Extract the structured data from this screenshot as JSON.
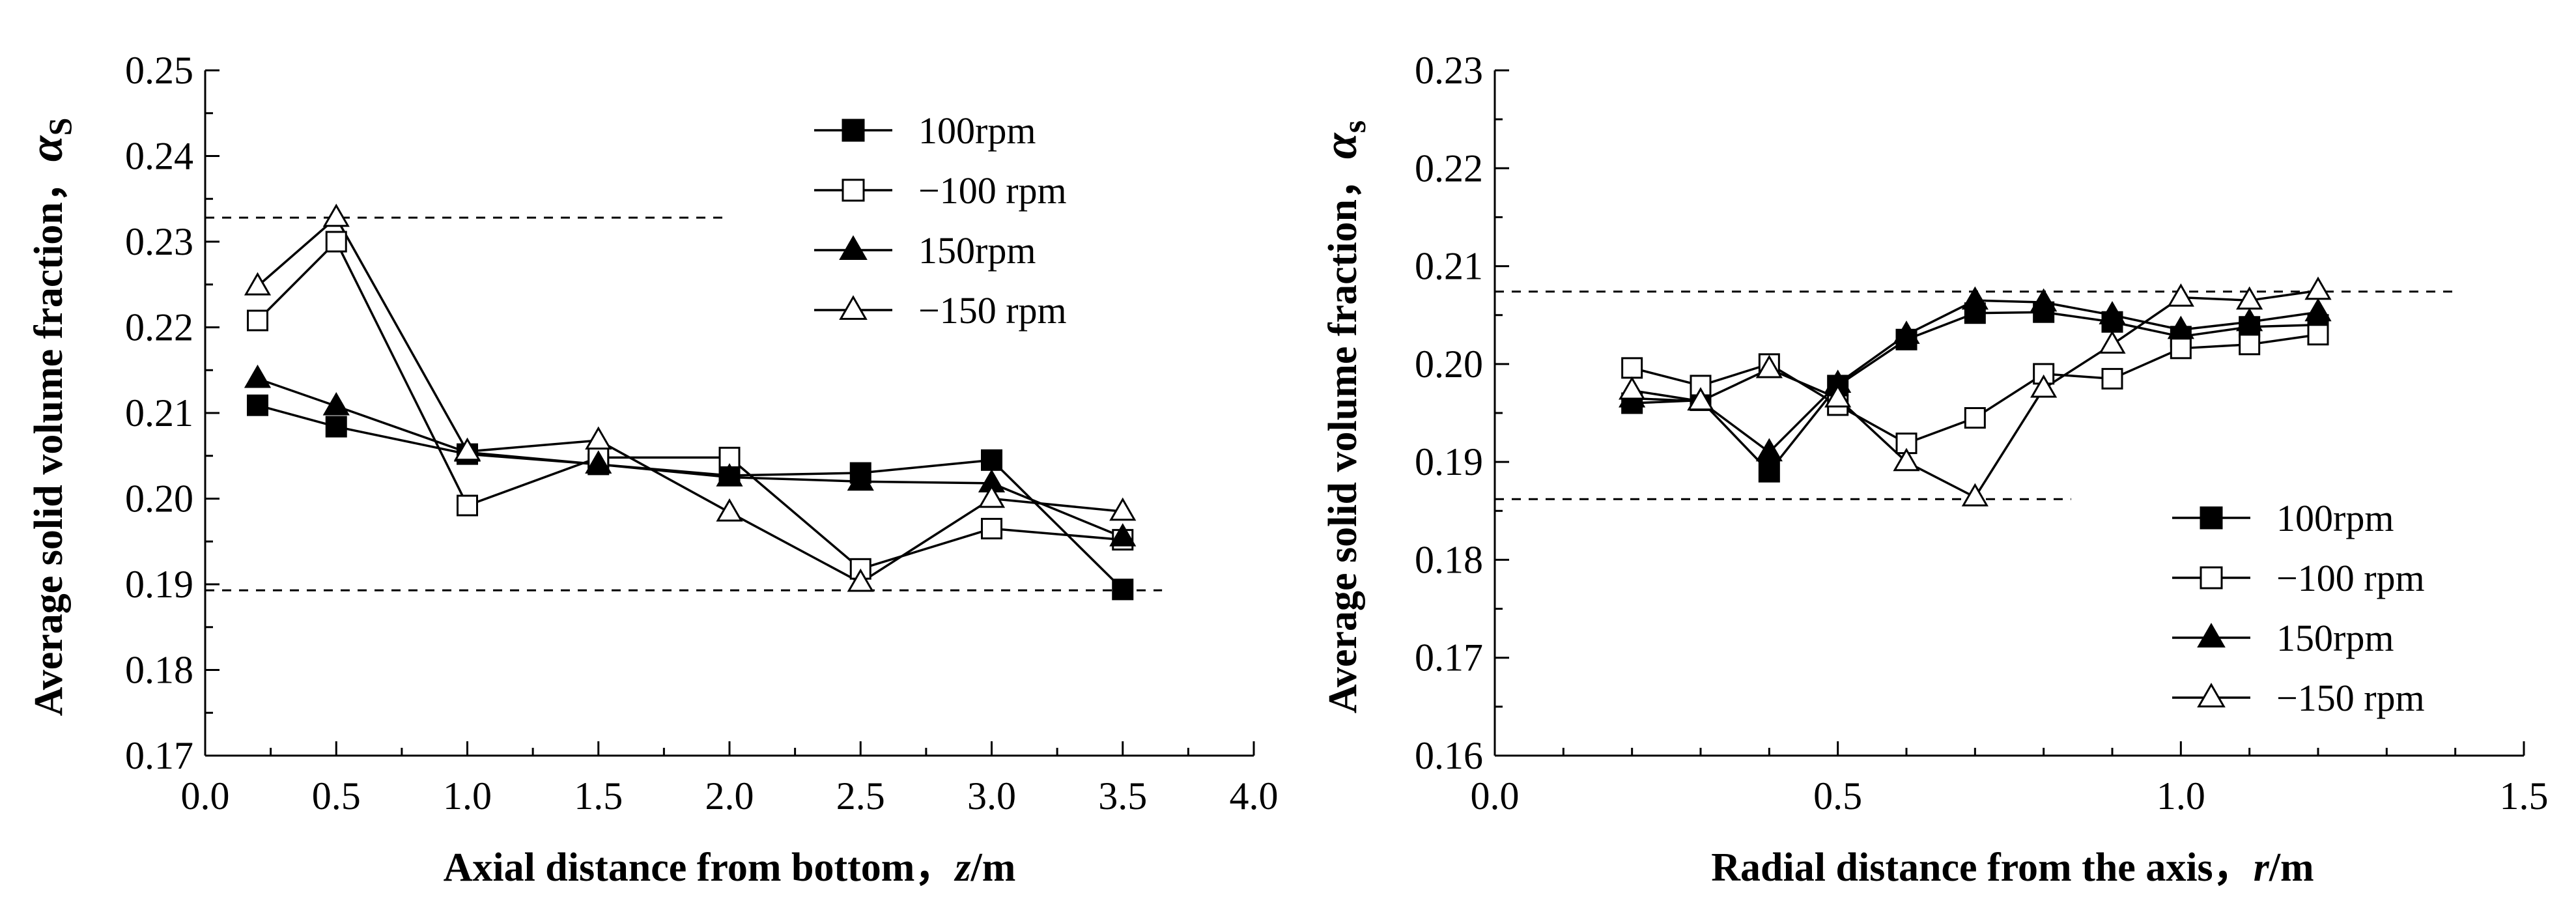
{
  "chart_data": [
    {
      "type": "line",
      "xlabel_main": "Axial distance from bottom，",
      "xlabel_var": "z",
      "xlabel_unit": "/m",
      "ylabel_main": "Average solid volume fraction，",
      "ylabel_symbol": "α",
      "ylabel_sub": "S",
      "xlim": [
        0.0,
        4.0
      ],
      "ylim": [
        0.17,
        0.25
      ],
      "xticks": [
        "0.0",
        "0.5",
        "1.0",
        "1.5",
        "2.0",
        "2.5",
        "3.0",
        "3.5",
        "4.0"
      ],
      "yticks": [
        "0.17",
        "0.18",
        "0.19",
        "0.20",
        "0.21",
        "0.22",
        "0.23",
        "0.24",
        "0.25"
      ],
      "legend_position": "top-right",
      "reference_lines": [
        {
          "y": 0.2328,
          "x_from": 0.0,
          "x_to": 2.0
        },
        {
          "y": 0.1893,
          "x_from": 0.0,
          "x_to": 3.65
        }
      ],
      "series": [
        {
          "name": "100rpm",
          "marker": "square-filled",
          "x": [
            0.2,
            0.5,
            1.0,
            1.5,
            2.0,
            2.5,
            3.0,
            3.5
          ],
          "y": [
            0.2109,
            0.2084,
            0.2052,
            0.204,
            0.2027,
            0.203,
            0.2045,
            0.1894
          ]
        },
        {
          "name": "−100 rpm",
          "marker": "square-open",
          "x": [
            0.2,
            0.5,
            1.0,
            1.5,
            2.0,
            2.5,
            3.0,
            3.5
          ],
          "y": [
            0.2208,
            0.23,
            0.1992,
            0.2048,
            0.2048,
            0.1918,
            0.1965,
            0.1952
          ]
        },
        {
          "name": "150rpm",
          "marker": "triangle-filled",
          "x": [
            0.2,
            0.5,
            1.0,
            1.5,
            2.0,
            2.5,
            3.0,
            3.5
          ],
          "y": [
            0.214,
            0.2108,
            0.2054,
            0.204,
            0.2025,
            0.202,
            0.2018,
            0.1955
          ]
        },
        {
          "name": "−150 rpm",
          "marker": "triangle-open",
          "x": [
            0.2,
            0.5,
            1.0,
            1.5,
            2.0,
            2.5,
            3.0,
            3.5
          ],
          "y": [
            0.2248,
            0.2328,
            0.2055,
            0.2068,
            0.1984,
            0.1902,
            0.2,
            0.1985
          ]
        }
      ]
    },
    {
      "type": "line",
      "xlabel_main": "Radial distance from the axis，",
      "xlabel_var": "r",
      "xlabel_unit": "/m",
      "ylabel_main": "Average solid volume fraction，",
      "ylabel_symbol": "α",
      "ylabel_sub": "s",
      "xlim": [
        0.0,
        1.5
      ],
      "ylim": [
        0.16,
        0.23
      ],
      "xticks": [
        "0.0",
        "0.5",
        "1.0",
        "1.5"
      ],
      "yticks": [
        "0.16",
        "0.17",
        "0.18",
        "0.19",
        "0.20",
        "0.21",
        "0.22",
        "0.23"
      ],
      "legend_position": "bottom-right",
      "reference_lines": [
        {
          "y": 0.2074,
          "x_from": 0.0,
          "x_to": 1.4
        },
        {
          "y": 0.1862,
          "x_from": 0.0,
          "x_to": 0.84
        }
      ],
      "series": [
        {
          "name": "100rpm",
          "marker": "square-filled",
          "x": [
            0.2,
            0.3,
            0.4,
            0.5,
            0.6,
            0.7,
            0.8,
            0.9,
            1.0,
            1.1,
            1.2
          ],
          "y": [
            0.196,
            0.1963,
            0.189,
            0.1978,
            0.2025,
            0.2052,
            0.2053,
            0.2043,
            0.2028,
            0.2038,
            0.204
          ]
        },
        {
          "name": "−100 rpm",
          "marker": "square-open",
          "x": [
            0.2,
            0.3,
            0.4,
            0.5,
            0.6,
            0.7,
            0.8,
            0.9,
            1.0,
            1.1,
            1.2
          ],
          "y": [
            0.1996,
            0.1978,
            0.2,
            0.1958,
            0.1919,
            0.1945,
            0.199,
            0.1985,
            0.2016,
            0.202,
            0.203
          ]
        },
        {
          "name": "150rpm",
          "marker": "triangle-filled",
          "x": [
            0.2,
            0.3,
            0.4,
            0.5,
            0.6,
            0.7,
            0.8,
            0.9,
            1.0,
            1.1,
            1.2
          ],
          "y": [
            0.1965,
            0.1962,
            0.191,
            0.198,
            0.203,
            0.2065,
            0.2063,
            0.205,
            0.2035,
            0.2043,
            0.2053
          ]
        },
        {
          "name": "−150 rpm",
          "marker": "triangle-open",
          "x": [
            0.2,
            0.3,
            0.4,
            0.5,
            0.6,
            0.7,
            0.8,
            0.9,
            1.0,
            1.1,
            1.2
          ],
          "y": [
            0.1973,
            0.1962,
            0.1995,
            0.1965,
            0.19,
            0.1864,
            0.1975,
            0.202,
            0.2068,
            0.2065,
            0.2075
          ]
        }
      ]
    }
  ]
}
